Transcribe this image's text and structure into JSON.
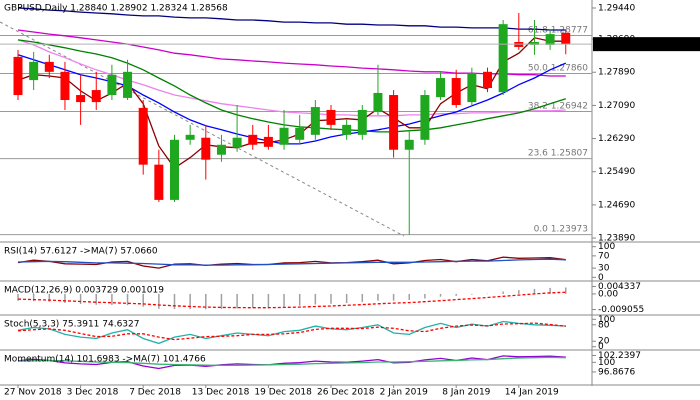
{
  "chart_data": [
    {
      "type": "candlestick",
      "title": "GBPUSD,Daily 1.28840 1.28902 1.28324 1.28568",
      "categories": [
        "27 Nov 2018",
        null,
        null,
        null,
        "3 Dec 2018",
        null,
        null,
        null,
        "7 Dec 2018",
        null,
        null,
        null,
        "13 Dec 2018",
        null,
        null,
        null,
        "19 Dec 2018",
        null,
        null,
        null,
        "26 Dec 2018",
        null,
        null,
        null,
        "2 Jan 2019",
        null,
        null,
        null,
        "8 Jan 2019",
        null,
        null,
        null,
        "14 Jan 2019",
        null,
        null,
        null
      ],
      "open": [
        1.2826,
        1.277,
        1.2814,
        1.279,
        1.2734,
        1.2746,
        1.2734,
        1.2727,
        1.2703,
        1.2566,
        1.2481,
        1.2626,
        1.2631,
        1.259,
        1.2607,
        1.2638,
        1.2633,
        1.2614,
        1.2626,
        1.2638,
        1.2698,
        1.2638,
        1.2638,
        1.2693,
        1.2734,
        1.2602,
        1.2626,
        1.2729,
        1.2775,
        1.2717,
        1.279,
        1.2741,
        1.2862,
        1.2855,
        1.2855,
        1.2884
      ],
      "high": [
        1.2843,
        1.2838,
        1.2831,
        1.2814,
        1.2783,
        1.279,
        1.2807,
        1.2819,
        1.2722,
        1.2602,
        1.2638,
        1.2662,
        1.2662,
        1.2638,
        1.271,
        1.2662,
        1.2662,
        1.2698,
        1.2686,
        1.2722,
        1.271,
        1.2674,
        1.271,
        1.2807,
        1.2746,
        1.265,
        1.2746,
        1.279,
        1.2795,
        1.28,
        1.28,
        1.2915,
        1.2932,
        1.2915,
        1.2891,
        1.28902
      ],
      "low": [
        1.2722,
        1.2746,
        1.2775,
        1.2698,
        1.2662,
        1.2698,
        1.2722,
        1.2722,
        1.2542,
        1.2476,
        1.2476,
        1.2614,
        1.253,
        1.2573,
        1.2597,
        1.2602,
        1.2602,
        1.2602,
        1.2614,
        1.2626,
        1.265,
        1.2626,
        1.2626,
        1.2686,
        1.2583,
        1.2397,
        1.2614,
        1.2722,
        1.2703,
        1.271,
        1.2741,
        1.2734,
        1.2843,
        1.2831,
        1.2843,
        1.28324
      ],
      "close": [
        1.2734,
        1.2814,
        1.279,
        1.2722,
        1.2717,
        1.2717,
        1.2783,
        1.279,
        1.2566,
        1.2481,
        1.2626,
        1.2638,
        1.2578,
        1.2614,
        1.2631,
        1.2614,
        1.2609,
        1.2655,
        1.2655,
        1.2705,
        1.2662,
        1.2662,
        1.2698,
        1.2739,
        1.2602,
        1.2626,
        1.2734,
        1.2775,
        1.271,
        1.2787,
        1.2751,
        1.2905,
        1.285,
        1.2862,
        1.2881,
        1.28568
      ],
      "up_color": "#1fa81f",
      "down_color": "#ff0000",
      "series": [
        {
          "color": "#000080",
          "values": [
            1.2944,
            1.2942,
            1.2939,
            1.2937,
            1.2934,
            1.2932,
            1.293,
            1.2927,
            1.2925,
            1.2925,
            1.2922,
            1.292,
            1.292,
            1.2918,
            1.2915,
            1.2915,
            1.2913,
            1.291,
            1.291,
            1.2908,
            1.2908,
            1.2905,
            1.2905,
            1.2903,
            1.2903,
            1.2901,
            1.2901,
            1.2898,
            1.2898,
            1.2896,
            1.2896,
            1.2896,
            1.2893,
            1.2893,
            1.2891,
            1.2891
          ]
        },
        {
          "color": "#ee82ee",
          "values": [
            1.2867,
            1.2855,
            1.2838,
            1.2824,
            1.2809,
            1.2795,
            1.2783,
            1.277,
            1.2759,
            1.2746,
            1.2734,
            1.2727,
            1.272,
            1.2713,
            1.2708,
            1.2703,
            1.2698,
            1.2693,
            1.2691,
            1.2689,
            1.2686,
            1.2686,
            1.2684,
            1.2684,
            1.2684,
            1.2686,
            1.2686,
            1.2689,
            1.2689,
            1.2691,
            1.2691,
            1.2693,
            1.2693,
            1.2696,
            1.2696,
            1.2698
          ]
        },
        {
          "color": "#cc00cc",
          "values": [
            1.2891,
            1.2886,
            1.2881,
            1.2877,
            1.2872,
            1.2867,
            1.2862,
            1.2857,
            1.285,
            1.2843,
            1.2835,
            1.2831,
            1.2826,
            1.2821,
            1.2819,
            1.2816,
            1.2814,
            1.2811,
            1.2809,
            1.2807,
            1.2804,
            1.2802,
            1.2799,
            1.2797,
            1.2795,
            1.2792,
            1.279,
            1.279,
            1.2787,
            1.2787,
            1.2785,
            1.2785,
            1.2783,
            1.2783,
            1.278,
            1.278
          ]
        },
        {
          "color": "#008000",
          "values": [
            1.2867,
            1.2862,
            1.2855,
            1.2848,
            1.284,
            1.2833,
            1.2824,
            1.2811,
            1.2795,
            1.2775,
            1.2756,
            1.2734,
            1.2715,
            1.2698,
            1.2686,
            1.2677,
            1.2669,
            1.2662,
            1.2657,
            1.2655,
            1.2652,
            1.265,
            1.2648,
            1.2645,
            1.2645,
            1.2648,
            1.265,
            1.2655,
            1.2662,
            1.2669,
            1.2677,
            1.2684,
            1.2691,
            1.2701,
            1.2713,
            1.2725
          ]
        },
        {
          "color": "#0000ff",
          "values": [
            1.2831,
            1.2819,
            1.2807,
            1.2795,
            1.2783,
            1.2775,
            1.2766,
            1.2756,
            1.2734,
            1.2715,
            1.2693,
            1.2674,
            1.266,
            1.265,
            1.264,
            1.2631,
            1.2623,
            1.2616,
            1.2616,
            1.2623,
            1.2633,
            1.264,
            1.2645,
            1.265,
            1.2657,
            1.2664,
            1.2674,
            1.2684,
            1.2693,
            1.2708,
            1.2722,
            1.2739,
            1.2759,
            1.2775,
            1.2795,
            1.2811
          ]
        },
        {
          "color": "#8b0000",
          "values": [
            1.277,
            1.2783,
            1.278,
            1.2775,
            1.2744,
            1.272,
            1.2739,
            1.2763,
            1.2713,
            1.2611,
            1.2558,
            1.2583,
            1.2614,
            1.2609,
            1.2607,
            1.2619,
            1.2619,
            1.2626,
            1.264,
            1.2672,
            1.2674,
            1.2677,
            1.2674,
            1.2701,
            1.2679,
            1.2655,
            1.2655,
            1.2713,
            1.2739,
            1.2759,
            1.2749,
            1.2814,
            1.2835,
            1.2872,
            1.2864,
            1.2864
          ]
        }
      ],
      "fibs": [
        {
          "level": "61.8",
          "price": 1.28777,
          "price_label": "1.28777"
        },
        {
          "level": "50.0",
          "price": 1.2786,
          "price_label": "1.27860"
        },
        {
          "level": "38.2",
          "price": 1.26942,
          "price_label": "1.26942"
        },
        {
          "level": "23.6",
          "price": 1.25807,
          "price_label": "1.25807"
        },
        {
          "level": "0.0",
          "price": 1.23973,
          "price_label": "1.23973"
        }
      ],
      "ylim": [
        1.23794,
        1.29633
      ],
      "yticks": [
        {
          "value": 1.2944,
          "label": "1.29440"
        },
        {
          "value": 1.2869,
          "label": "1.28690"
        },
        {
          "value": 1.2789,
          "label": "1.27890"
        },
        {
          "value": 1.2709,
          "label": "1.27090"
        },
        {
          "value": 1.2629,
          "label": "1.26290"
        },
        {
          "value": 1.2549,
          "label": "1.25490"
        },
        {
          "value": 1.2469,
          "label": "1.24690"
        },
        {
          "value": 1.2389,
          "label": "1.23890"
        }
      ]
    },
    {
      "type": "line",
      "title": "RSI(14) 57.6127 ->MA(7) 57.0660",
      "ylim": [
        -12,
        112
      ],
      "yticks": [
        100,
        70,
        30,
        0
      ],
      "series": [
        {
          "color": "#8b0000",
          "values": [
            48,
            56,
            52,
            44,
            43,
            42,
            50,
            52,
            37,
            30,
            43,
            44,
            39,
            43,
            45,
            42,
            42,
            47,
            48,
            52,
            47,
            48,
            51,
            56,
            44,
            47,
            55,
            58,
            51,
            58,
            54,
            66,
            62,
            63,
            64,
            57.6
          ]
        },
        {
          "color": "#1e50c8",
          "values": [
            50,
            51,
            52,
            51,
            49,
            47,
            47,
            46,
            45,
            43,
            41,
            41,
            40,
            40,
            41,
            41,
            42,
            43,
            44,
            45,
            46,
            47,
            48,
            49,
            49,
            49,
            50,
            51,
            52,
            53,
            53,
            55,
            57,
            58,
            59,
            57.1
          ]
        }
      ]
    },
    {
      "type": "macd",
      "title": "MACD(12,26,9) 0.003729 0.001019",
      "ylim": [
        -0.0122,
        0.0069
      ],
      "yticks": [
        0.004337,
        {
          "value": 0,
          "label": "0.00"
        },
        -0.009055
      ],
      "series": [
        {
          "color": "#a0a0a0",
          "style": "histogram",
          "values": [
            -0.004,
            -0.0042,
            -0.0045,
            -0.0052,
            -0.0058,
            -0.0063,
            -0.0064,
            -0.0065,
            -0.0074,
            -0.0086,
            -0.0088,
            -0.0088,
            -0.0089,
            -0.0087,
            -0.0084,
            -0.0081,
            -0.0078,
            -0.0073,
            -0.0068,
            -0.0061,
            -0.0057,
            -0.0053,
            -0.0047,
            -0.0039,
            -0.0039,
            -0.0035,
            -0.0026,
            -0.0016,
            -0.0011,
            -0.0004,
            0.0002,
            0.0014,
            0.0022,
            0.0029,
            0.0035,
            0.0037
          ]
        },
        {
          "color": "#ff0000",
          "dash": true,
          "values": [
            -0.003,
            -0.0033,
            -0.0036,
            -0.004,
            -0.0044,
            -0.0048,
            -0.0051,
            -0.0054,
            -0.0058,
            -0.0064,
            -0.0069,
            -0.0073,
            -0.0076,
            -0.0078,
            -0.0079,
            -0.008,
            -0.008,
            -0.0078,
            -0.0076,
            -0.0073,
            -0.007,
            -0.0066,
            -0.0062,
            -0.0057,
            -0.0053,
            -0.005,
            -0.0045,
            -0.0039,
            -0.0033,
            -0.0027,
            -0.0021,
            -0.0014,
            -0.0007,
            0.0,
            0.0006,
            0.001
          ]
        }
      ]
    },
    {
      "type": "line",
      "title": "Stoch(5,3,3) 75.3911 74.6327",
      "ylim": [
        -12,
        112
      ],
      "yticks": [
        100,
        80,
        20,
        0
      ],
      "series": [
        {
          "color": "#20b2aa",
          "values": [
            60,
            70,
            65,
            45,
            35,
            30,
            50,
            62,
            30,
            12,
            35,
            45,
            30,
            40,
            50,
            45,
            40,
            55,
            60,
            75,
            65,
            62,
            70,
            80,
            50,
            45,
            70,
            85,
            70,
            82,
            75,
            92,
            85,
            80,
            78,
            75.4
          ]
        },
        {
          "color": "#ff0000",
          "dash": true,
          "values": [
            58,
            62,
            65,
            60,
            48,
            37,
            38,
            47,
            47,
            35,
            26,
            31,
            37,
            38,
            40,
            45,
            45,
            47,
            52,
            63,
            67,
            67,
            66,
            71,
            67,
            58,
            55,
            67,
            75,
            79,
            76,
            83,
            84,
            86,
            81,
            74.6
          ]
        }
      ]
    },
    {
      "type": "line",
      "title": "Momentum(14) 101.6983 ->MA(7) 101.4766",
      "ylim": [
        92.6,
        103.7
      ],
      "yticks": [
        102.2397,
        100,
        96.8676
      ],
      "series": [
        {
          "color": "#9400d3",
          "values": [
            100.5,
            101,
            100.6,
            99.8,
            99.5,
            99.3,
            100,
            100.2,
            98.8,
            98,
            99,
            99.1,
            98.7,
            99.2,
            99.5,
            99.3,
            99.2,
            99.7,
            99.9,
            100.4,
            100.1,
            100,
            100.4,
            100.9,
            99.8,
            100,
            100.8,
            101.3,
            100.6,
            101.4,
            100.9,
            102.1,
            101.8,
            101.9,
            102,
            101.7
          ]
        },
        {
          "color": "#3cb371",
          "values": [
            100.4,
            100.5,
            100.6,
            100.5,
            100.3,
            100.1,
            100,
            99.9,
            99.7,
            99.4,
            99.3,
            99.2,
            99.1,
            99,
            99,
            99.1,
            99.2,
            99.3,
            99.4,
            99.6,
            99.7,
            99.8,
            99.9,
            100.1,
            100.1,
            100.2,
            100.3,
            100.5,
            100.6,
            100.8,
            100.9,
            101.2,
            101.4,
            101.5,
            101.6,
            101.5
          ]
        }
      ]
    }
  ]
}
